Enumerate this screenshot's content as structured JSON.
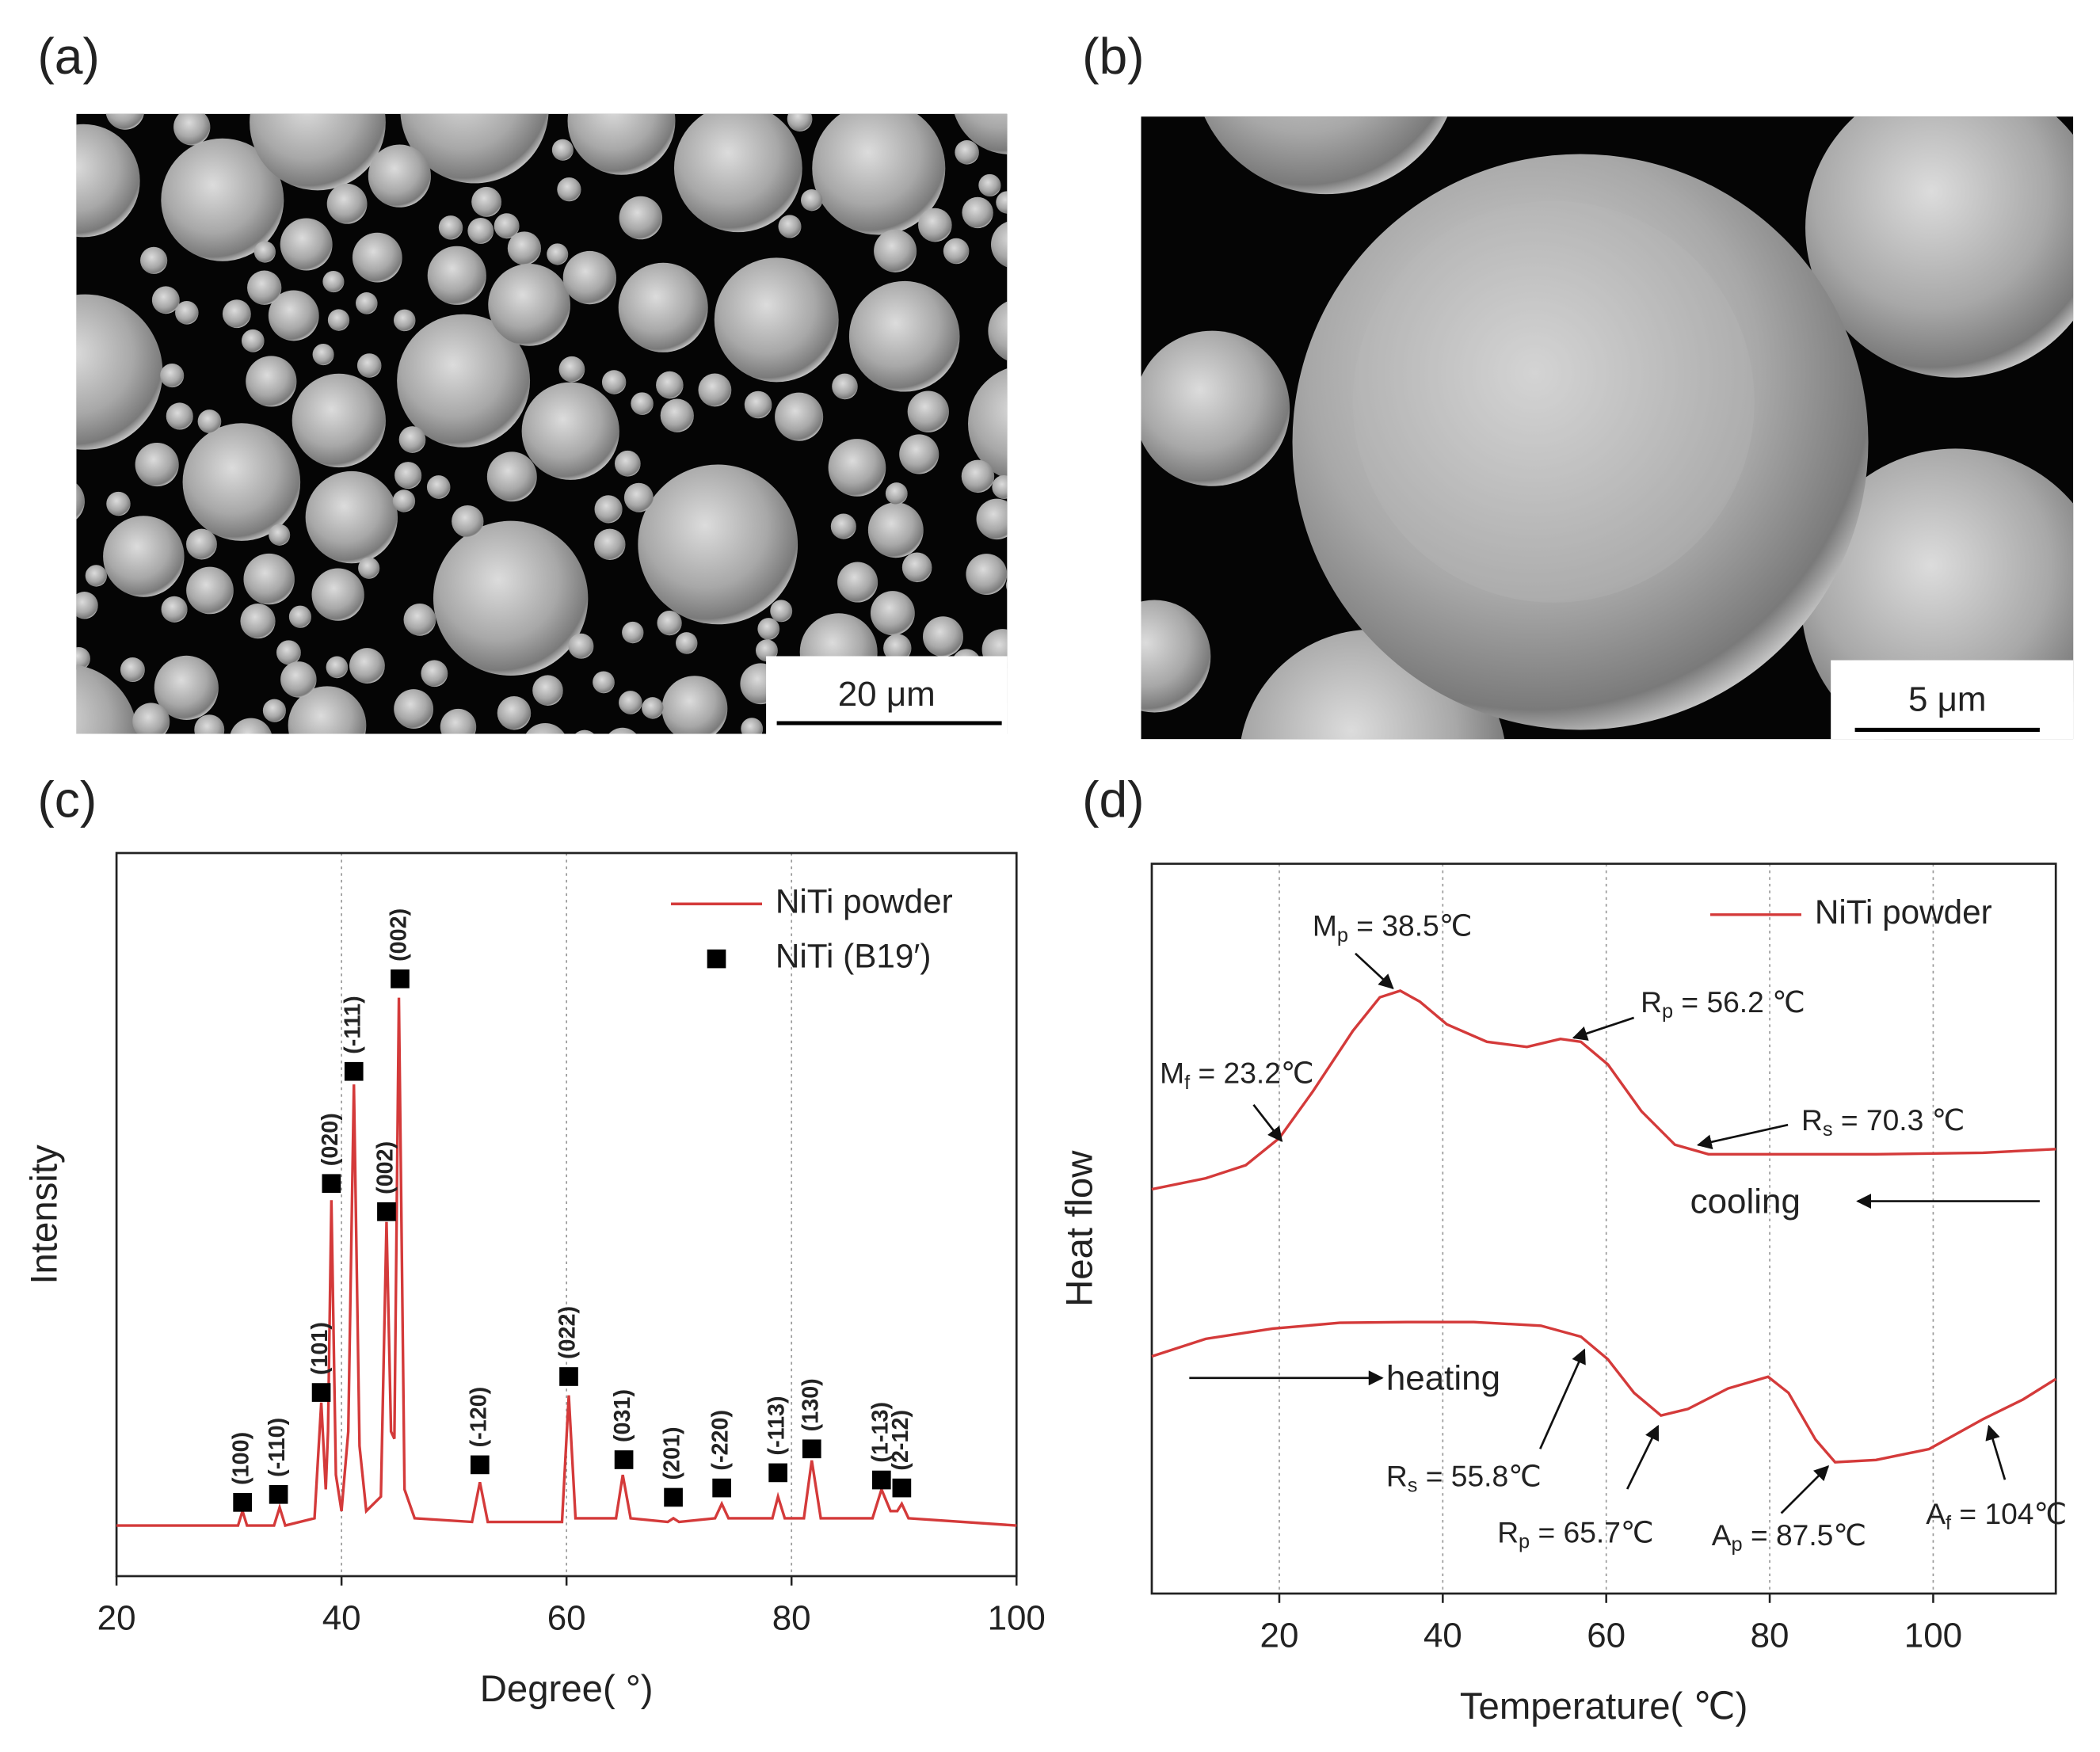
{
  "panels": {
    "a": {
      "label": "(a)",
      "scale_bar": "20 μm"
    },
    "b": {
      "label": "(b)",
      "scale_bar": "5 μm"
    },
    "c": {
      "label": "(c)"
    },
    "d": {
      "label": "(d)"
    }
  },
  "chart_data": [
    {
      "type": "line",
      "x_label": "Degree( °)",
      "y_label": "Intensity",
      "xlim": [
        20,
        100
      ],
      "xticks": [
        20,
        40,
        60,
        80,
        100
      ],
      "ylim": [
        0,
        100
      ],
      "grid": true,
      "legend": "upper right",
      "series": [
        {
          "name": "NiTi powder",
          "color": "#d43a3a",
          "x": [
            20,
            28,
            30.8,
            31.2,
            31.6,
            34,
            34.5,
            35,
            37.6,
            38.2,
            38.6,
            38.8,
            39.1,
            39.5,
            40,
            40.6,
            41.1,
            41.6,
            42.2,
            43.5,
            44,
            44.4,
            44.7,
            45.1,
            45.6,
            46.5,
            51.6,
            52.3,
            53,
            59.6,
            60.2,
            60.8,
            64.4,
            65,
            65.7,
            69,
            69.5,
            70,
            73.2,
            73.8,
            74.4,
            78.3,
            78.8,
            79.4,
            81.1,
            81.8,
            82.6,
            87.2,
            88,
            88.8,
            89.4,
            89.8,
            90.4,
            100
          ],
          "values": [
            7,
            7,
            7,
            9,
            7,
            7,
            9.5,
            7,
            8,
            24,
            12,
            20,
            52,
            14,
            9,
            20,
            68,
            18,
            9,
            11,
            49,
            20,
            19,
            80,
            12,
            8,
            7.5,
            13,
            7.5,
            7.5,
            25,
            8,
            8,
            14,
            8,
            7.5,
            8,
            7.5,
            8,
            10,
            8,
            8,
            11,
            8,
            8,
            16,
            8,
            8,
            12,
            9,
            9,
            10,
            8,
            7
          ]
        },
        {
          "name": "NiTi (B19′)",
          "color": "#000000",
          "marker": "square",
          "x": [
            31.2,
            34.4,
            38.2,
            39.1,
            41.1,
            44.0,
            45.2,
            52.3,
            60.2,
            65.1,
            69.5,
            73.8,
            78.8,
            81.8,
            88.0,
            89.8
          ],
          "values": [
            10.2,
            11.3,
            25.4,
            54.3,
            69.8,
            50.4,
            82.6,
            15.4,
            27.6,
            16.1,
            10.9,
            12.2,
            14.3,
            17.6,
            13.3,
            12.2
          ],
          "point_labels": [
            "(100)",
            "(-110)",
            "(101)",
            "(020)",
            "(-111)",
            "(002)",
            "(002)",
            "(-120)",
            "(022)",
            "(031)",
            "(201)",
            "(-220)",
            "(-113)",
            "(130)",
            "(1-13)",
            "(2-12)"
          ]
        }
      ]
    },
    {
      "type": "line",
      "x_label": "Temperature( ℃)",
      "y_label": "Heat flow",
      "xlim": [
        4.4,
        115
      ],
      "xticks": [
        20,
        40,
        60,
        80,
        100
      ],
      "ylim": [
        0,
        100
      ],
      "grid": true,
      "legend": "upper right",
      "series": [
        {
          "name": "NiTi powder",
          "color": "#d43a3a",
          "x": [
            4.4,
            11.0,
            15.9,
            20,
            24.1,
            29.0,
            32.3,
            34.8,
            37.2,
            40.5,
            45.4,
            50.3,
            54.4,
            56.9,
            60.2,
            64.3,
            68.4,
            72.5,
            79.8,
            93.0,
            106.1,
            115
          ],
          "values": [
            55.4,
            56.9,
            58.7,
            62.4,
            68.8,
            77.1,
            81.7,
            82.6,
            81.1,
            78.0,
            75.6,
            74.9,
            76.0,
            75.6,
            72.5,
            66.1,
            61.5,
            60.2,
            60.2,
            60.2,
            60.4,
            60.9
          ]
        },
        {
          "color": "#d43a3a",
          "x": [
            4.4,
            11.0,
            19.2,
            27.4,
            35.6,
            43.8,
            52.0,
            56.9,
            60.2,
            63.4,
            66.7,
            70.0,
            74.9,
            79.8,
            82.3,
            85.6,
            88.0,
            93.0,
            99.5,
            106.1,
            111.0,
            115
          ],
          "values": [
            32.5,
            34.9,
            36.3,
            37.1,
            37.2,
            37.2,
            36.7,
            35.2,
            32.1,
            27.5,
            24.4,
            25.3,
            28.1,
            29.7,
            27.5,
            21.1,
            18.0,
            18.3,
            19.8,
            23.9,
            26.6,
            29.4
          ]
        }
      ],
      "annotations": [
        {
          "main": "M",
          "sub": "p",
          "tail": " = 38.5℃"
        },
        {
          "main": "R",
          "sub": "p",
          "tail": " = 56.2 ℃"
        },
        {
          "main": "M",
          "sub": "f",
          "tail": " = 23.2℃"
        },
        {
          "main": "R",
          "sub": "s",
          "tail": " = 70.3 ℃"
        },
        {
          "main": "cooling"
        },
        {
          "main": "heating"
        },
        {
          "main": "R",
          "sub": "s",
          "tail": " = 55.8℃"
        },
        {
          "main": "R",
          "sub": "p",
          "tail": " = 65.7℃"
        },
        {
          "main": "A",
          "sub": "p",
          "tail": " = 87.5℃"
        },
        {
          "main": "A",
          "sub": "f",
          "tail": " = 104℃"
        }
      ]
    }
  ]
}
